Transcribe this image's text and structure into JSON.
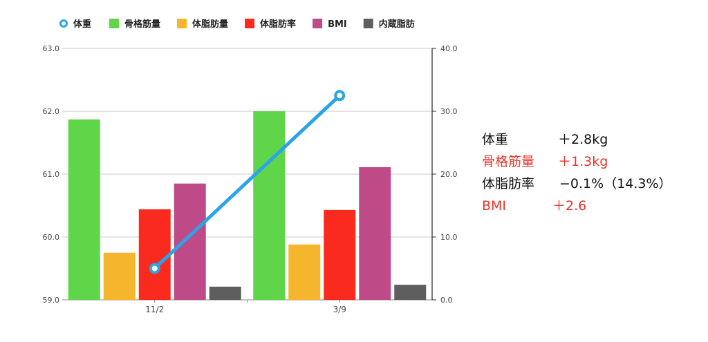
{
  "colors": {
    "weight": "#2ba3e8",
    "skeletal_muscle": "#5fd64a",
    "body_fat_mass": "#f5b52d",
    "body_fat_rate": "#fb2a1f",
    "bmi": "#bf4a88",
    "visceral_fat": "#5e5e5e",
    "summary_black": "#111111",
    "summary_red": "#e8352a"
  },
  "chart_data": {
    "type": "bar",
    "categories": [
      "11/2",
      "3/9"
    ],
    "legend_position": "top-left",
    "grid": true,
    "y_left": {
      "ylim": [
        59.0,
        63.0
      ],
      "ticks": [
        "59.0",
        "60.0",
        "61.0",
        "62.0",
        "63.0"
      ]
    },
    "y_right": {
      "ylim": [
        0.0,
        40.0
      ],
      "ticks": [
        "0.0",
        "10.0",
        "20.0",
        "30.0",
        "40.0"
      ]
    },
    "line_series": {
      "name": "体重",
      "axis": "left",
      "values": [
        59.5,
        62.25
      ]
    },
    "series": [
      {
        "name": "骨格筋量",
        "axis": "right",
        "values": [
          28.7,
          30.0
        ]
      },
      {
        "name": "体脂肪量",
        "axis": "right",
        "values": [
          7.5,
          8.8
        ]
      },
      {
        "name": "体脂肪率",
        "axis": "right",
        "values": [
          14.4,
          14.3
        ]
      },
      {
        "name": "BMI",
        "axis": "right",
        "values": [
          18.5,
          21.1
        ]
      },
      {
        "name": "内蔵脂肪",
        "axis": "right",
        "values": [
          2.1,
          2.4
        ]
      }
    ]
  },
  "summary": [
    {
      "label": "体重",
      "value": "＋2.8kg",
      "color": "#111111"
    },
    {
      "label": "骨格筋量",
      "value": "＋1.3kg",
      "color": "#e8352a"
    },
    {
      "label": "体脂肪率",
      "value": "−0.1%（14.3%）",
      "color": "#111111"
    },
    {
      "label": "BMI",
      "value": "＋2.6",
      "color": "#e8352a"
    }
  ]
}
